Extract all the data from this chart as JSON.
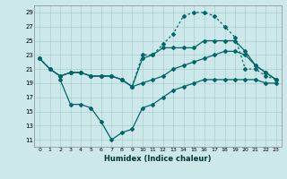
{
  "xlabel": "Humidex (Indice chaleur)",
  "background_color": "#cce8ea",
  "grid_color": "#aacccc",
  "line_color": "#006666",
  "x_ticks": [
    0,
    1,
    2,
    3,
    4,
    5,
    6,
    7,
    8,
    9,
    10,
    11,
    12,
    13,
    14,
    15,
    16,
    17,
    18,
    19,
    20,
    21,
    22,
    23
  ],
  "y_ticks": [
    11,
    13,
    15,
    17,
    19,
    21,
    23,
    25,
    27,
    29
  ],
  "ylim": [
    10,
    30
  ],
  "xlim": [
    -0.5,
    23.5
  ],
  "line1_x": [
    0,
    1,
    2,
    3,
    4,
    5,
    6,
    7,
    8,
    9,
    10,
    11,
    12,
    13,
    14,
    15,
    16,
    17,
    18,
    19,
    20,
    21,
    22,
    23
  ],
  "line1_y": [
    22.5,
    21.0,
    20.0,
    20.5,
    20.5,
    20.0,
    20.0,
    20.0,
    19.5,
    18.5,
    22.5,
    23.0,
    24.0,
    24.0,
    24.0,
    24.0,
    25.0,
    25.0,
    25.0,
    25.0,
    23.5,
    21.5,
    20.5,
    19.5
  ],
  "line2_x": [
    0,
    1,
    2,
    3,
    4,
    5,
    6,
    7,
    8,
    9,
    10,
    11,
    12,
    13,
    14,
    15,
    16,
    17,
    18,
    19,
    20,
    21,
    22,
    23
  ],
  "line2_y": [
    22.5,
    21.0,
    20.0,
    20.5,
    20.5,
    20.0,
    20.0,
    20.0,
    19.5,
    18.5,
    23.0,
    23.0,
    24.5,
    26.0,
    28.5,
    29.0,
    29.0,
    28.5,
    27.0,
    25.5,
    21.0,
    21.0,
    20.0,
    19.5
  ],
  "line3_x": [
    0,
    1,
    2,
    3,
    4,
    5,
    6,
    7,
    8,
    9,
    10,
    11,
    12,
    13,
    14,
    15,
    16,
    17,
    18,
    19,
    20,
    21,
    22,
    23
  ],
  "line3_y": [
    22.5,
    21.0,
    20.0,
    20.5,
    20.5,
    20.0,
    20.0,
    20.0,
    19.5,
    18.5,
    19.0,
    19.5,
    20.0,
    21.0,
    21.5,
    22.0,
    22.5,
    23.0,
    23.5,
    23.5,
    23.0,
    21.5,
    20.5,
    19.5
  ],
  "line4_x": [
    2,
    3,
    4,
    5,
    6,
    7,
    8,
    9,
    10,
    11,
    12,
    13,
    14,
    15,
    16,
    17,
    18,
    19,
    20,
    21,
    22,
    23
  ],
  "line4_y": [
    19.5,
    16.0,
    16.0,
    15.5,
    13.5,
    11.0,
    12.0,
    12.5,
    15.5,
    16.0,
    17.0,
    18.0,
    18.5,
    19.0,
    19.5,
    19.5,
    19.5,
    19.5,
    19.5,
    19.5,
    19.0,
    19.0
  ]
}
